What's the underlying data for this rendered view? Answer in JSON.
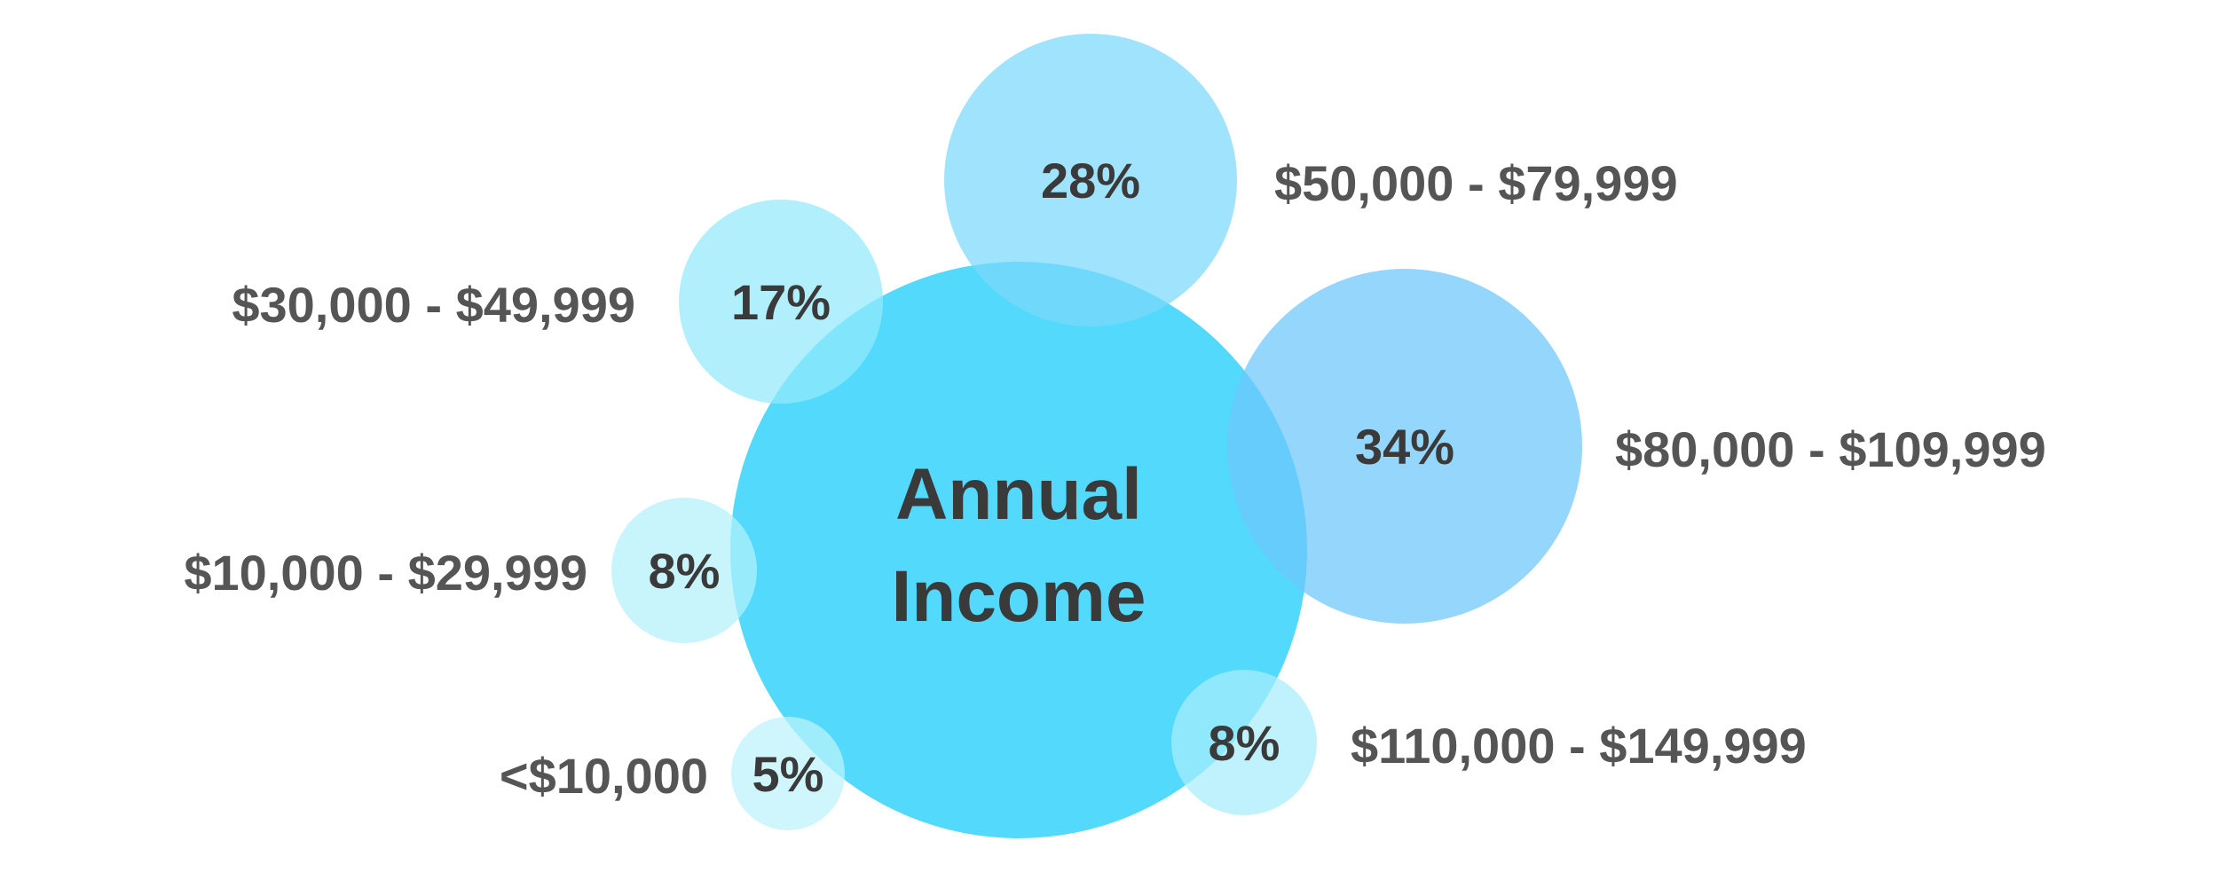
{
  "chart_data": {
    "type": "bubble",
    "center_label_lines": [
      "Annual",
      "Income"
    ],
    "categories": [
      "<$10,000",
      "$10,000 - $29,999",
      "$30,000 - $49,999",
      "$50,000 - $79,999",
      "$80,000 - $109,999",
      "$110,000 - $149,999"
    ],
    "values": [
      5,
      8,
      17,
      28,
      34,
      8
    ],
    "value_labels": [
      "5%",
      "8%",
      "17%",
      "28%",
      "34%",
      "8%"
    ],
    "colors": {
      "center": "#4fd8fb",
      "bubbles": [
        "#bdf3fb",
        "#b3f1fb",
        "#93e9fb",
        "#7cd8fb",
        "#6cc6fb",
        "#a6edfb"
      ]
    }
  }
}
